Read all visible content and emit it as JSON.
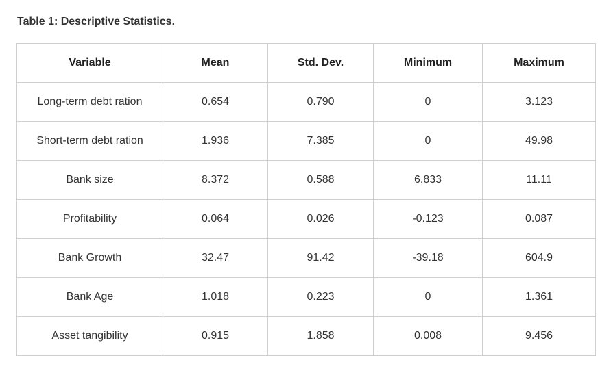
{
  "caption": "Table 1: Descriptive Statistics.",
  "table": {
    "headers": [
      "Variable",
      "Mean",
      "Std. Dev.",
      "Minimum",
      "Maximum"
    ],
    "rows": [
      [
        "Long-term debt ration",
        "0.654",
        "0.790",
        "0",
        "3.123"
      ],
      [
        "Short-term debt ration",
        "1.936",
        "7.385",
        "0",
        "49.98"
      ],
      [
        "Bank size",
        "8.372",
        "0.588",
        "6.833",
        "11.11"
      ],
      [
        "Profitability",
        "0.064",
        "0.026",
        "-0.123",
        "0.087"
      ],
      [
        "Bank Growth",
        "32.47",
        "91.42",
        "-39.18",
        "604.9"
      ],
      [
        "Bank Age",
        "1.018",
        "0.223",
        "0",
        "1.361"
      ],
      [
        "Asset tangibility",
        "0.915",
        "1.858",
        "0.008",
        "9.456"
      ]
    ]
  }
}
